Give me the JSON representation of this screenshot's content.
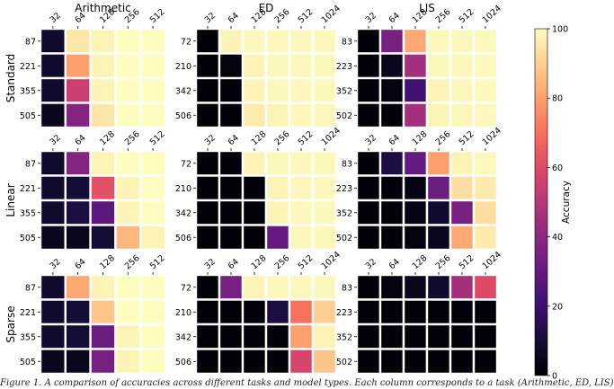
{
  "colors": {
    "cmap": "magma",
    "grid": "#ffffff",
    "text": "#000000"
  },
  "chart_data": {
    "type": "heatmap",
    "col_titles": [
      "Arithmetic",
      "ED",
      "LIS"
    ],
    "row_labels": [
      "Standard",
      "Linear",
      "Sparse"
    ],
    "colorbar": {
      "label": "Accuracy",
      "range": [
        0,
        100
      ],
      "ticks": [
        "0",
        "20",
        "40",
        "60",
        "80",
        "100"
      ]
    },
    "panels": [
      {
        "model": "Standard",
        "task": "Arithmetic",
        "x": [
          "32",
          "64",
          "128",
          "256",
          "512"
        ],
        "y": [
          "87",
          "221",
          "355",
          "505"
        ],
        "values": [
          [
            8,
            95,
            98,
            100,
            100
          ],
          [
            8,
            80,
            98,
            100,
            100
          ],
          [
            8,
            55,
            98,
            100,
            100
          ],
          [
            5,
            38,
            95,
            100,
            100
          ]
        ]
      },
      {
        "model": "Standard",
        "task": "ED",
        "x": [
          "32",
          "64",
          "128",
          "256",
          "512",
          "1024"
        ],
        "y": [
          "72",
          "210",
          "342",
          "506"
        ],
        "values": [
          [
            1,
            98,
            99,
            99,
            99,
            99
          ],
          [
            1,
            2,
            98,
            99,
            99,
            99
          ],
          [
            1,
            1,
            98,
            99,
            99,
            99
          ],
          [
            1,
            1,
            96,
            98,
            99,
            99
          ]
        ]
      },
      {
        "model": "Standard",
        "task": "LIS",
        "x": [
          "32",
          "64",
          "128",
          "256",
          "512",
          "1024"
        ],
        "y": [
          "83",
          "223",
          "352",
          "502"
        ],
        "values": [
          [
            1,
            35,
            82,
            99,
            99,
            99
          ],
          [
            1,
            5,
            45,
            99,
            99,
            99
          ],
          [
            1,
            2,
            22,
            98,
            99,
            99
          ],
          [
            1,
            1,
            45,
            98,
            99,
            99
          ]
        ]
      },
      {
        "model": "Linear",
        "task": "Arithmetic",
        "x": [
          "32",
          "64",
          "128",
          "256",
          "512"
        ],
        "y": [
          "87",
          "221",
          "355",
          "505"
        ],
        "values": [
          [
            8,
            38,
            98,
            100,
            100
          ],
          [
            8,
            10,
            62,
            98,
            100
          ],
          [
            8,
            12,
            28,
            98,
            100
          ],
          [
            5,
            5,
            10,
            85,
            98
          ]
        ]
      },
      {
        "model": "Linear",
        "task": "ED",
        "x": [
          "32",
          "64",
          "128",
          "256",
          "512",
          "1024"
        ],
        "y": [
          "72",
          "210",
          "342",
          "506"
        ],
        "values": [
          [
            1,
            1,
            98,
            99,
            99,
            99
          ],
          [
            1,
            1,
            1,
            98,
            99,
            99
          ],
          [
            1,
            1,
            1,
            98,
            99,
            99
          ],
          [
            1,
            1,
            1,
            30,
            99,
            99
          ]
        ]
      },
      {
        "model": "Linear",
        "task": "LIS",
        "x": [
          "32",
          "64",
          "128",
          "256",
          "512",
          "1024"
        ],
        "y": [
          "83",
          "223",
          "352",
          "502"
        ],
        "values": [
          [
            1,
            12,
            30,
            80,
            98,
            99
          ],
          [
            1,
            1,
            3,
            32,
            93,
            96
          ],
          [
            1,
            1,
            3,
            8,
            35,
            93
          ],
          [
            1,
            1,
            2,
            5,
            82,
            96
          ]
        ]
      },
      {
        "model": "Sparse",
        "task": "Arithmetic",
        "x": [
          "32",
          "64",
          "128",
          "256",
          "512"
        ],
        "y": [
          "87",
          "221",
          "355",
          "505"
        ],
        "values": [
          [
            8,
            82,
            98,
            100,
            100
          ],
          [
            8,
            10,
            88,
            100,
            100
          ],
          [
            8,
            10,
            32,
            98,
            100
          ],
          [
            5,
            5,
            35,
            98,
            100
          ]
        ]
      },
      {
        "model": "Sparse",
        "task": "ED",
        "x": [
          "32",
          "64",
          "128",
          "256",
          "512",
          "1024"
        ],
        "y": [
          "72",
          "210",
          "342",
          "506"
        ],
        "values": [
          [
            1,
            35,
            98,
            99,
            99,
            99
          ],
          [
            1,
            1,
            1,
            12,
            70,
            90
          ],
          [
            1,
            1,
            1,
            1,
            80,
            98
          ],
          [
            1,
            1,
            1,
            1,
            58,
            88
          ]
        ]
      },
      {
        "model": "Sparse",
        "task": "LIS",
        "x": [
          "32",
          "64",
          "128",
          "256",
          "512",
          "1024"
        ],
        "y": [
          "83",
          "223",
          "352",
          "502"
        ],
        "values": [
          [
            1,
            2,
            5,
            8,
            45,
            60
          ],
          [
            1,
            1,
            1,
            1,
            1,
            1
          ],
          [
            1,
            1,
            1,
            1,
            1,
            1
          ],
          [
            1,
            1,
            1,
            1,
            1,
            1
          ]
        ]
      }
    ]
  },
  "caption": "Figure 1. A comparison of accuracies across different tasks and model types. Each column corresponds to a task (Arithmetic, ED, LIS)"
}
